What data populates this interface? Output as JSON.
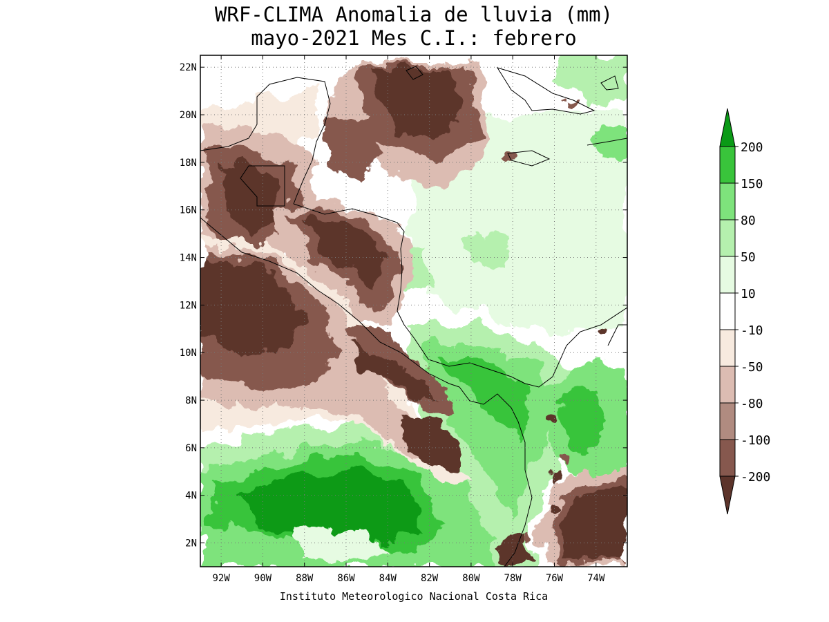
{
  "title_line1": "WRF-CLIMA Anomalia de lluvia (mm)",
  "title_line2": "mayo-2021 Mes C.I.: febrero",
  "credit": "Instituto Meteorologico Nacional Costa Rica",
  "map": {
    "lon_range": [
      -93.0,
      -72.5
    ],
    "lat_range": [
      1.0,
      22.5
    ],
    "lon_ticks": [
      -92,
      -90,
      -88,
      -86,
      -84,
      -82,
      -80,
      -78,
      -76,
      -74
    ],
    "lon_tick_labels": [
      "92W",
      "90W",
      "88W",
      "86W",
      "84W",
      "82W",
      "80W",
      "78W",
      "76W",
      "74W"
    ],
    "lat_ticks": [
      2,
      4,
      6,
      8,
      10,
      12,
      14,
      16,
      18,
      20,
      22
    ],
    "lat_tick_labels": [
      "2N",
      "4N",
      "6N",
      "8N",
      "10N",
      "12N",
      "14N",
      "16N",
      "18N",
      "20N",
      "22N"
    ],
    "grid": "dotted"
  },
  "colorbar": {
    "labels": [
      "200",
      "150",
      "80",
      "50",
      "10",
      "-10",
      "-50",
      "-80",
      "-100",
      "-200"
    ],
    "colors": [
      "#0a9a16",
      "#39c43b",
      "#7ee37c",
      "#b5f0ae",
      "#e6fbe2",
      "#ffffff",
      "#f7eadf",
      "#dcbcb2",
      "#b08b80",
      "#86584e",
      "#5c342b"
    ]
  }
}
